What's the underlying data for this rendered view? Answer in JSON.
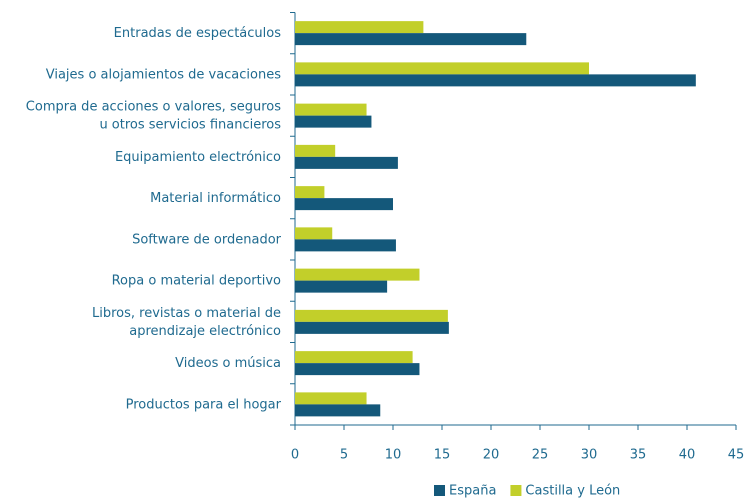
{
  "chart_data": {
    "type": "hbar",
    "categories": [
      [
        "Entradas de espectáculos"
      ],
      [
        "Viajes o alojamientos de vacaciones"
      ],
      [
        "Compra de acciones o valores, seguros",
        "u otros servicios financieros"
      ],
      [
        "Equipamiento electrónico"
      ],
      [
        "Material informático"
      ],
      [
        "Software de ordenador"
      ],
      [
        "Ropa o material deportivo"
      ],
      [
        "Libros, revistas o material de",
        "aprendizaje electrónico"
      ],
      [
        "Videos o música"
      ],
      [
        "Productos para el hogar"
      ]
    ],
    "series": [
      {
        "name": "Castilla y León",
        "color": "#c2cf2a",
        "values": [
          13.1,
          30.0,
          7.3,
          4.1,
          3.0,
          3.8,
          12.7,
          15.6,
          12.0,
          7.3
        ]
      },
      {
        "name": "España",
        "color": "#14587a",
        "values": [
          23.6,
          40.9,
          7.8,
          10.5,
          10.0,
          10.3,
          9.4,
          15.7,
          12.7,
          8.7
        ]
      }
    ],
    "legend_order": [
      1,
      0
    ],
    "xlim": [
      0,
      45
    ],
    "xticks": [
      0,
      5,
      10,
      15,
      20,
      25,
      30,
      35,
      40,
      45
    ],
    "grid": false
  }
}
